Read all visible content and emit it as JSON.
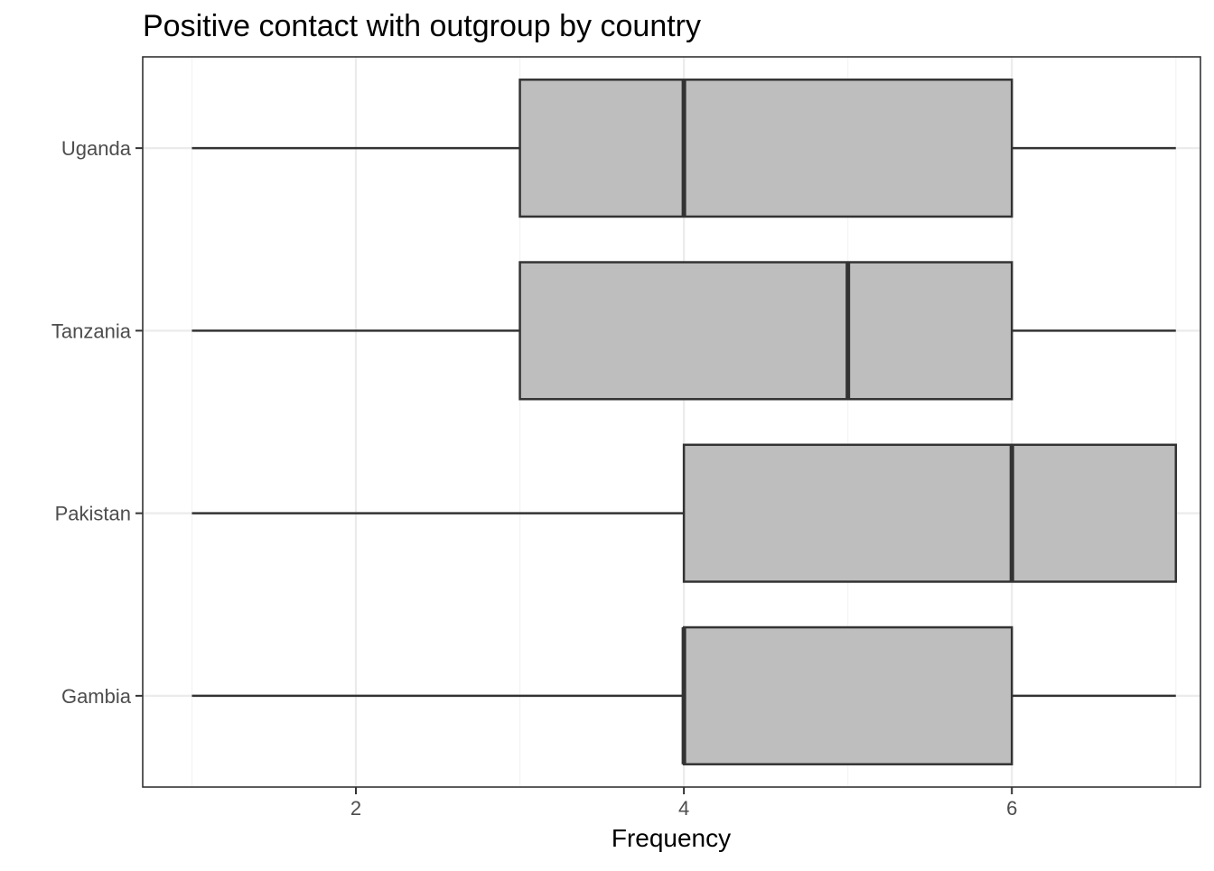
{
  "chart_data": {
    "type": "boxplot",
    "orientation": "horizontal",
    "title": "Positive contact with outgroup by country",
    "xlabel": "Frequency",
    "ylabel": "",
    "xlim": [
      0.7,
      7.15
    ],
    "xticks": [
      2,
      4,
      6
    ],
    "grid": true,
    "legend": "none",
    "categories": [
      "Gambia",
      "Pakistan",
      "Tanzania",
      "Uganda"
    ],
    "boxes": [
      {
        "category": "Gambia",
        "whisker_low": 1,
        "q1": 4,
        "median": 4,
        "q3": 6,
        "whisker_high": 7
      },
      {
        "category": "Pakistan",
        "whisker_low": 1,
        "q1": 4,
        "median": 6,
        "q3": 7,
        "whisker_high": 7
      },
      {
        "category": "Tanzania",
        "whisker_low": 1,
        "q1": 3,
        "median": 5,
        "q3": 6,
        "whisker_high": 7
      },
      {
        "category": "Uganda",
        "whisker_low": 1,
        "q1": 3,
        "median": 4,
        "q3": 6,
        "whisker_high": 7
      }
    ],
    "colors": {
      "box_fill": "#bebebe",
      "box_stroke": "#333333",
      "grid_major": "#ebebeb",
      "grid_minor": "#f3f3f3",
      "panel_border": "#333333",
      "tick_text": "#4d4d4d"
    }
  }
}
